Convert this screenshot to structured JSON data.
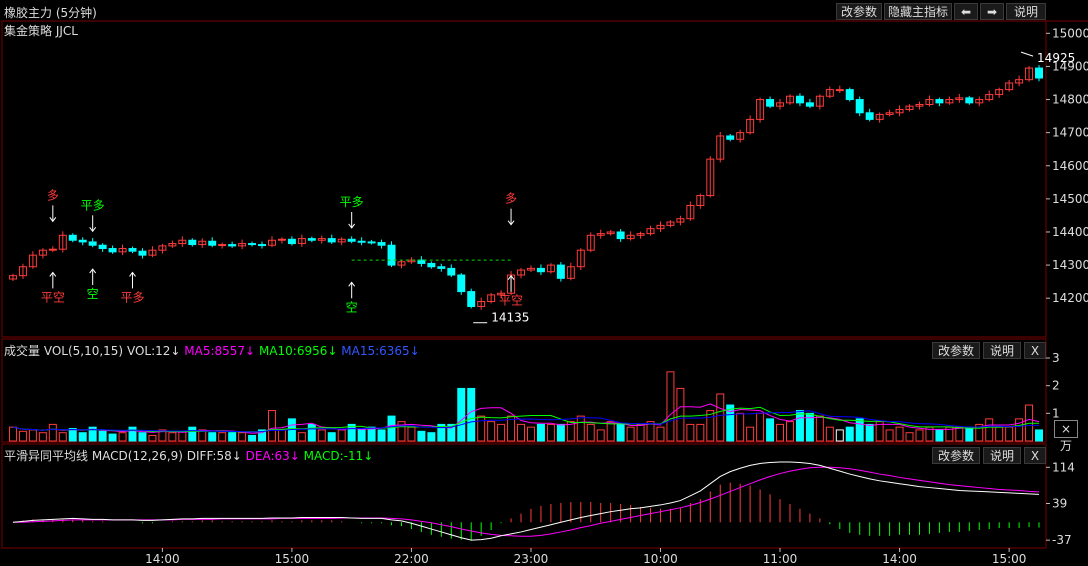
{
  "header": {
    "title": "橡胶主力 (5分钟)",
    "strategy": "集金策略 JJCL",
    "buttons": {
      "params": "改参数",
      "hide": "隐藏主指标",
      "left": "⬅",
      "right": "➡",
      "help": "说明"
    }
  },
  "colors": {
    "up": "#ff3b3b",
    "down": "#00ffff",
    "grid": "#7a0000",
    "ma5": "#ff00ff",
    "ma10": "#00ff00",
    "ma15": "#0000ff",
    "diff": "#ffffff",
    "dea": "#ff00ff",
    "text": "#dddddd"
  },
  "volume_panel": {
    "title": "成交量 VOL(5,10,15)",
    "vol": "VOL:12↓",
    "ma5": "MA5:8557↓",
    "ma10": "MA10:6956↓",
    "ma15": "MA15:6365↓",
    "params": "改参数",
    "help": "说明",
    "close": "X",
    "unit": "×万"
  },
  "macd_panel": {
    "title": "平滑异同平均线 MACD(12,26,9)",
    "diff": "DIFF:58↓",
    "dea": "DEA:63↓",
    "macd": "MACD:-11↓",
    "params": "改参数",
    "help": "说明",
    "close": "X"
  },
  "chart_data": {
    "type": "candlestick",
    "price_ticks": [
      15000,
      14900,
      14800,
      14700,
      14600,
      14500,
      14400,
      14300,
      14200
    ],
    "price_range": [
      14110,
      15010
    ],
    "time_labels": [
      {
        "label": "14:00",
        "index": 15
      },
      {
        "label": "15:00",
        "index": 28
      },
      {
        "label": "22:00",
        "index": 40
      },
      {
        "label": "23:00",
        "index": 52
      },
      {
        "label": "10:00",
        "index": 65
      },
      {
        "label": "11:00",
        "index": 77
      },
      {
        "label": "14:00",
        "index": 89
      },
      {
        "label": "15:00",
        "index": 100
      }
    ],
    "closes": [
      14268,
      14295,
      14330,
      14345,
      14348,
      14390,
      14375,
      14370,
      14360,
      14350,
      14340,
      14350,
      14342,
      14330,
      14345,
      14358,
      14365,
      14375,
      14362,
      14372,
      14360,
      14362,
      14358,
      14365,
      14362,
      14360,
      14375,
      14378,
      14365,
      14380,
      14375,
      14380,
      14370,
      14378,
      14372,
      14370,
      14368,
      14360,
      14300,
      14310,
      14315,
      14305,
      14295,
      14290,
      14270,
      14220,
      14175,
      14190,
      14210,
      14215,
      14270,
      14285,
      14290,
      14280,
      14300,
      14260,
      14295,
      14345,
      14390,
      14395,
      14400,
      14380,
      14390,
      14395,
      14410,
      14420,
      14430,
      14440,
      14480,
      14510,
      14620,
      14690,
      14680,
      14700,
      14740,
      14800,
      14780,
      14790,
      14810,
      14790,
      14780,
      14810,
      14830,
      14830,
      14800,
      14760,
      14740,
      14755,
      14760,
      14770,
      14780,
      14785,
      14800,
      14790,
      14800,
      14805,
      14790,
      14800,
      14815,
      14830,
      14850,
      14860,
      14895,
      14865
    ],
    "annotations": [
      {
        "text": "多",
        "index": 4,
        "price": 14420,
        "side": "above",
        "color": "#ff3b3b"
      },
      {
        "text": "平空",
        "index": 4,
        "price": 14290,
        "side": "below",
        "color": "#ff3b3b"
      },
      {
        "text": "平多",
        "index": 8,
        "price": 14390,
        "side": "above",
        "color": "#00ff00"
      },
      {
        "text": "空",
        "index": 8,
        "price": 14300,
        "side": "below",
        "color": "#00ff00"
      },
      {
        "text": "平多",
        "index": 12,
        "price": 14290,
        "side": "below",
        "color": "#ff3b3b"
      },
      {
        "text": "平多",
        "index": 34,
        "price": 14400,
        "side": "above",
        "color": "#00ff00"
      },
      {
        "text": "空",
        "index": 34,
        "price": 14260,
        "side": "below",
        "color": "#00ff00"
      },
      {
        "text": "多",
        "index": 50,
        "price": 14410,
        "side": "above",
        "color": "#ff3b3b"
      },
      {
        "text": "平空",
        "index": 50,
        "price": 14280,
        "side": "below",
        "color": "#ff3b3b"
      }
    ],
    "high_label": {
      "text": "14925",
      "index": 102,
      "price": 14925
    },
    "low_label": {
      "text": "14135",
      "index": 46,
      "price": 14135
    },
    "volume_ticks": [
      "3",
      "2",
      "1"
    ],
    "volume_range": [
      0,
      3
    ],
    "volumes": [
      0.5,
      0.35,
      0.4,
      0.3,
      0.6,
      0.3,
      0.45,
      0.3,
      0.5,
      0.35,
      0.25,
      0.3,
      0.5,
      0.3,
      0.2,
      0.4,
      0.3,
      0.35,
      0.5,
      0.4,
      0.3,
      0.3,
      0.3,
      0.3,
      0.2,
      0.4,
      1.1,
      0.4,
      0.8,
      0.3,
      0.6,
      0.4,
      0.3,
      0.4,
      0.6,
      0.4,
      0.5,
      0.4,
      0.9,
      0.7,
      0.5,
      0.35,
      0.3,
      0.6,
      0.6,
      1.9,
      1.9,
      0.9,
      0.7,
      0.6,
      0.9,
      0.6,
      0.5,
      0.6,
      0.6,
      0.6,
      0.7,
      0.9,
      0.6,
      0.4,
      0.7,
      0.6,
      0.5,
      0.6,
      0.7,
      0.5,
      2.5,
      1.9,
      0.6,
      0.6,
      1.1,
      1.7,
      1.3,
      1.0,
      0.5,
      1.0,
      0.8,
      0.6,
      0.7,
      1.1,
      1.0,
      0.9,
      0.5,
      0.4,
      0.5,
      0.8,
      0.6,
      0.7,
      0.4,
      0.5,
      0.3,
      0.4,
      0.5,
      0.4,
      0.5,
      0.5,
      0.5,
      0.6,
      0.8,
      0.5,
      0.5,
      0.8,
      1.3,
      0.4
    ],
    "macd_ticks": [
      114,
      39,
      -37
    ],
    "macd_range": [
      -45,
      125
    ],
    "diff": [
      0,
      2,
      4,
      5,
      6,
      7,
      8,
      7,
      6,
      6,
      5,
      5,
      5,
      4,
      4,
      5,
      6,
      7,
      7,
      8,
      8,
      8,
      8,
      8,
      8,
      8,
      9,
      9,
      9,
      10,
      10,
      10,
      10,
      10,
      9,
      8,
      8,
      8,
      5,
      3,
      -2,
      -8,
      -14,
      -20,
      -26,
      -32,
      -37,
      -36,
      -33,
      -28,
      -24,
      -20,
      -15,
      -10,
      -5,
      0,
      5,
      10,
      14,
      18,
      22,
      25,
      28,
      30,
      33,
      36,
      40,
      45,
      55,
      65,
      80,
      95,
      105,
      112,
      118,
      122,
      124,
      125,
      125,
      124,
      122,
      118,
      112,
      106,
      100,
      95,
      90,
      86,
      83,
      80,
      77,
      74,
      72,
      70,
      68,
      66,
      65,
      64,
      63,
      62,
      61,
      60,
      59,
      58
    ],
    "dea": [
      0,
      0,
      1,
      2,
      3,
      4,
      5,
      5,
      5,
      5,
      5,
      5,
      5,
      5,
      5,
      5,
      5,
      6,
      6,
      6,
      6,
      7,
      7,
      7,
      7,
      7,
      7,
      8,
      8,
      8,
      8,
      8,
      8,
      9,
      9,
      9,
      9,
      9,
      8,
      7,
      5,
      2,
      -1,
      -5,
      -9,
      -14,
      -18,
      -22,
      -25,
      -27,
      -28,
      -29,
      -29,
      -27,
      -24,
      -20,
      -16,
      -11,
      -7,
      -2,
      2,
      6,
      10,
      14,
      18,
      22,
      26,
      30,
      35,
      41,
      48,
      56,
      64,
      72,
      80,
      88,
      95,
      101,
      106,
      110,
      113,
      114,
      114,
      113,
      111,
      108,
      104,
      100,
      97,
      93,
      90,
      87,
      84,
      81,
      78,
      76,
      74,
      72,
      70,
      68,
      67,
      66,
      64,
      63
    ],
    "macd": [
      0,
      4,
      6,
      6,
      6,
      6,
      6,
      4,
      2,
      2,
      0,
      0,
      0,
      -2,
      -2,
      0,
      2,
      2,
      2,
      4,
      4,
      2,
      2,
      2,
      2,
      2,
      4,
      2,
      2,
      4,
      4,
      4,
      4,
      2,
      0,
      -2,
      -2,
      -2,
      -6,
      -8,
      -14,
      -20,
      -26,
      -30,
      -34,
      -36,
      -38,
      -28,
      -16,
      -2,
      8,
      18,
      28,
      34,
      38,
      40,
      42,
      42,
      42,
      40,
      40,
      38,
      36,
      32,
      30,
      28,
      28,
      30,
      40,
      48,
      64,
      78,
      82,
      80,
      76,
      68,
      58,
      48,
      38,
      28,
      18,
      8,
      -4,
      -14,
      -22,
      -26,
      -28,
      -28,
      -28,
      -26,
      -26,
      -26,
      -24,
      -22,
      -20,
      -20,
      -18,
      -16,
      -14,
      -12,
      -12,
      -12,
      -10,
      -11
    ]
  }
}
